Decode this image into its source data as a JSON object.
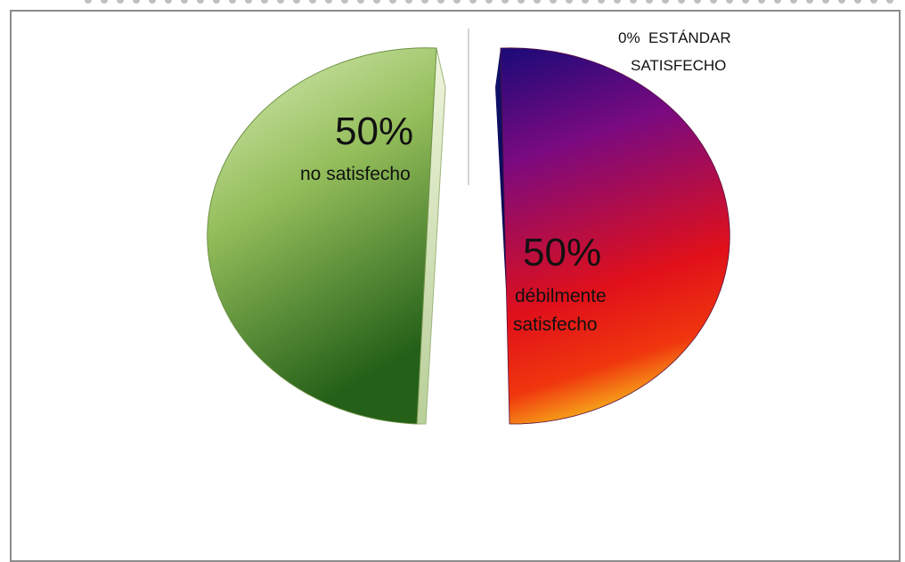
{
  "chart_data": {
    "type": "pie",
    "slices": [
      {
        "percent": "50%",
        "label": "no satisfecho",
        "value": 50,
        "color_top": "#d6e8b2",
        "color_bottom": "#2c6f1d"
      },
      {
        "percent": "50%",
        "label_line1": "débilmente",
        "label_line2": "satisfecho",
        "value": 50,
        "color_top": "#1f0a7a",
        "color_mid": "#8c1173",
        "color_bottom": "#f07a10"
      },
      {
        "percent": "0%",
        "label_line1": "ESTÁNDAR",
        "label_line2": "SATISFECHO",
        "value": 0
      }
    ],
    "exploded": true,
    "three_d": true
  }
}
